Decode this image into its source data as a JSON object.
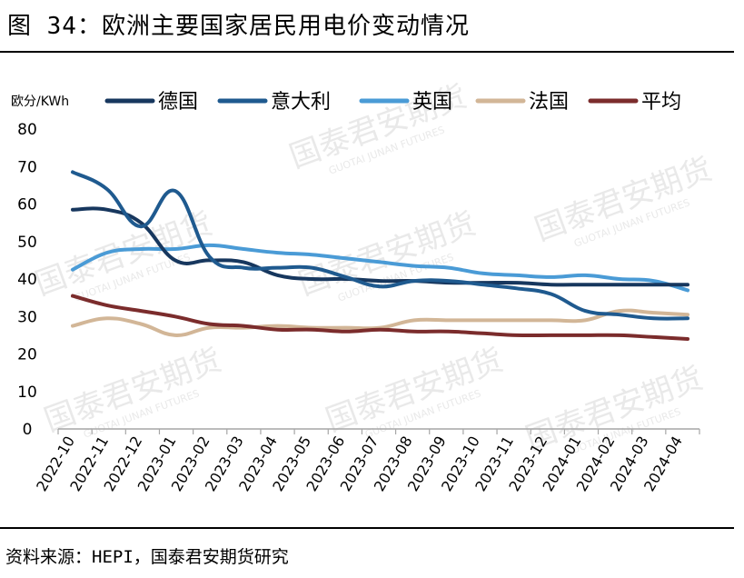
{
  "header": {
    "title": "图 34：欧洲主要国家居民用电价变动情况"
  },
  "footer": {
    "source": "资料来源：HEPI，国泰君安期货研究"
  },
  "watermark": {
    "cn": "国泰君安期货",
    "en": "GUOTAI JUNAN FUTURES"
  },
  "chart_data": {
    "type": "line",
    "title": "",
    "ylabel": "欧分/KWh",
    "xlabel": "",
    "ylim": [
      0,
      80
    ],
    "yticks": [
      0,
      10,
      20,
      30,
      40,
      50,
      60,
      70,
      80
    ],
    "legend_position": "top",
    "grid": false,
    "categories": [
      "2022-10",
      "2022-11",
      "2022-12",
      "2023-01",
      "2023-02",
      "2023-03",
      "2023-04",
      "2023-05",
      "2023-06",
      "2023-07",
      "2023-08",
      "2023-09",
      "2023-10",
      "2023-11",
      "2023-12",
      "2024-01",
      "2024-02",
      "2024-03",
      "2024-04"
    ],
    "series": [
      {
        "name": "德国",
        "color": "#17375e",
        "values": [
          58.5,
          58.5,
          55,
          45,
          45,
          44.5,
          41,
          40,
          40,
          39.5,
          39.5,
          39,
          39,
          39,
          38.5,
          38.5,
          38.5,
          38.5,
          38.5
        ]
      },
      {
        "name": "意大利",
        "color": "#1f5a8f",
        "values": [
          68.5,
          64,
          54,
          63.5,
          46,
          43,
          43,
          43,
          40.5,
          38,
          39.5,
          39.5,
          38.5,
          37.5,
          36,
          31.5,
          30.5,
          29.5,
          29.5
        ]
      },
      {
        "name": "英国",
        "color": "#4a9bd6",
        "values": [
          42.5,
          47,
          48,
          48,
          49,
          48,
          47,
          46.5,
          45.5,
          44.5,
          43.5,
          43,
          41.5,
          41,
          40.5,
          41,
          40,
          39.5,
          37
        ]
      },
      {
        "name": "法国",
        "color": "#d2b697",
        "values": [
          27.5,
          29.5,
          28,
          25,
          27,
          27,
          27.5,
          27,
          27,
          27,
          29,
          29,
          29,
          29,
          29,
          29,
          31.5,
          31,
          30.5
        ]
      },
      {
        "name": "平均",
        "color": "#7b2c2c",
        "values": [
          35.5,
          33,
          31.5,
          30,
          28,
          27.5,
          26.5,
          26.5,
          26,
          26.5,
          26,
          26,
          25.5,
          25,
          25,
          25,
          25,
          24.5,
          24
        ]
      }
    ]
  }
}
